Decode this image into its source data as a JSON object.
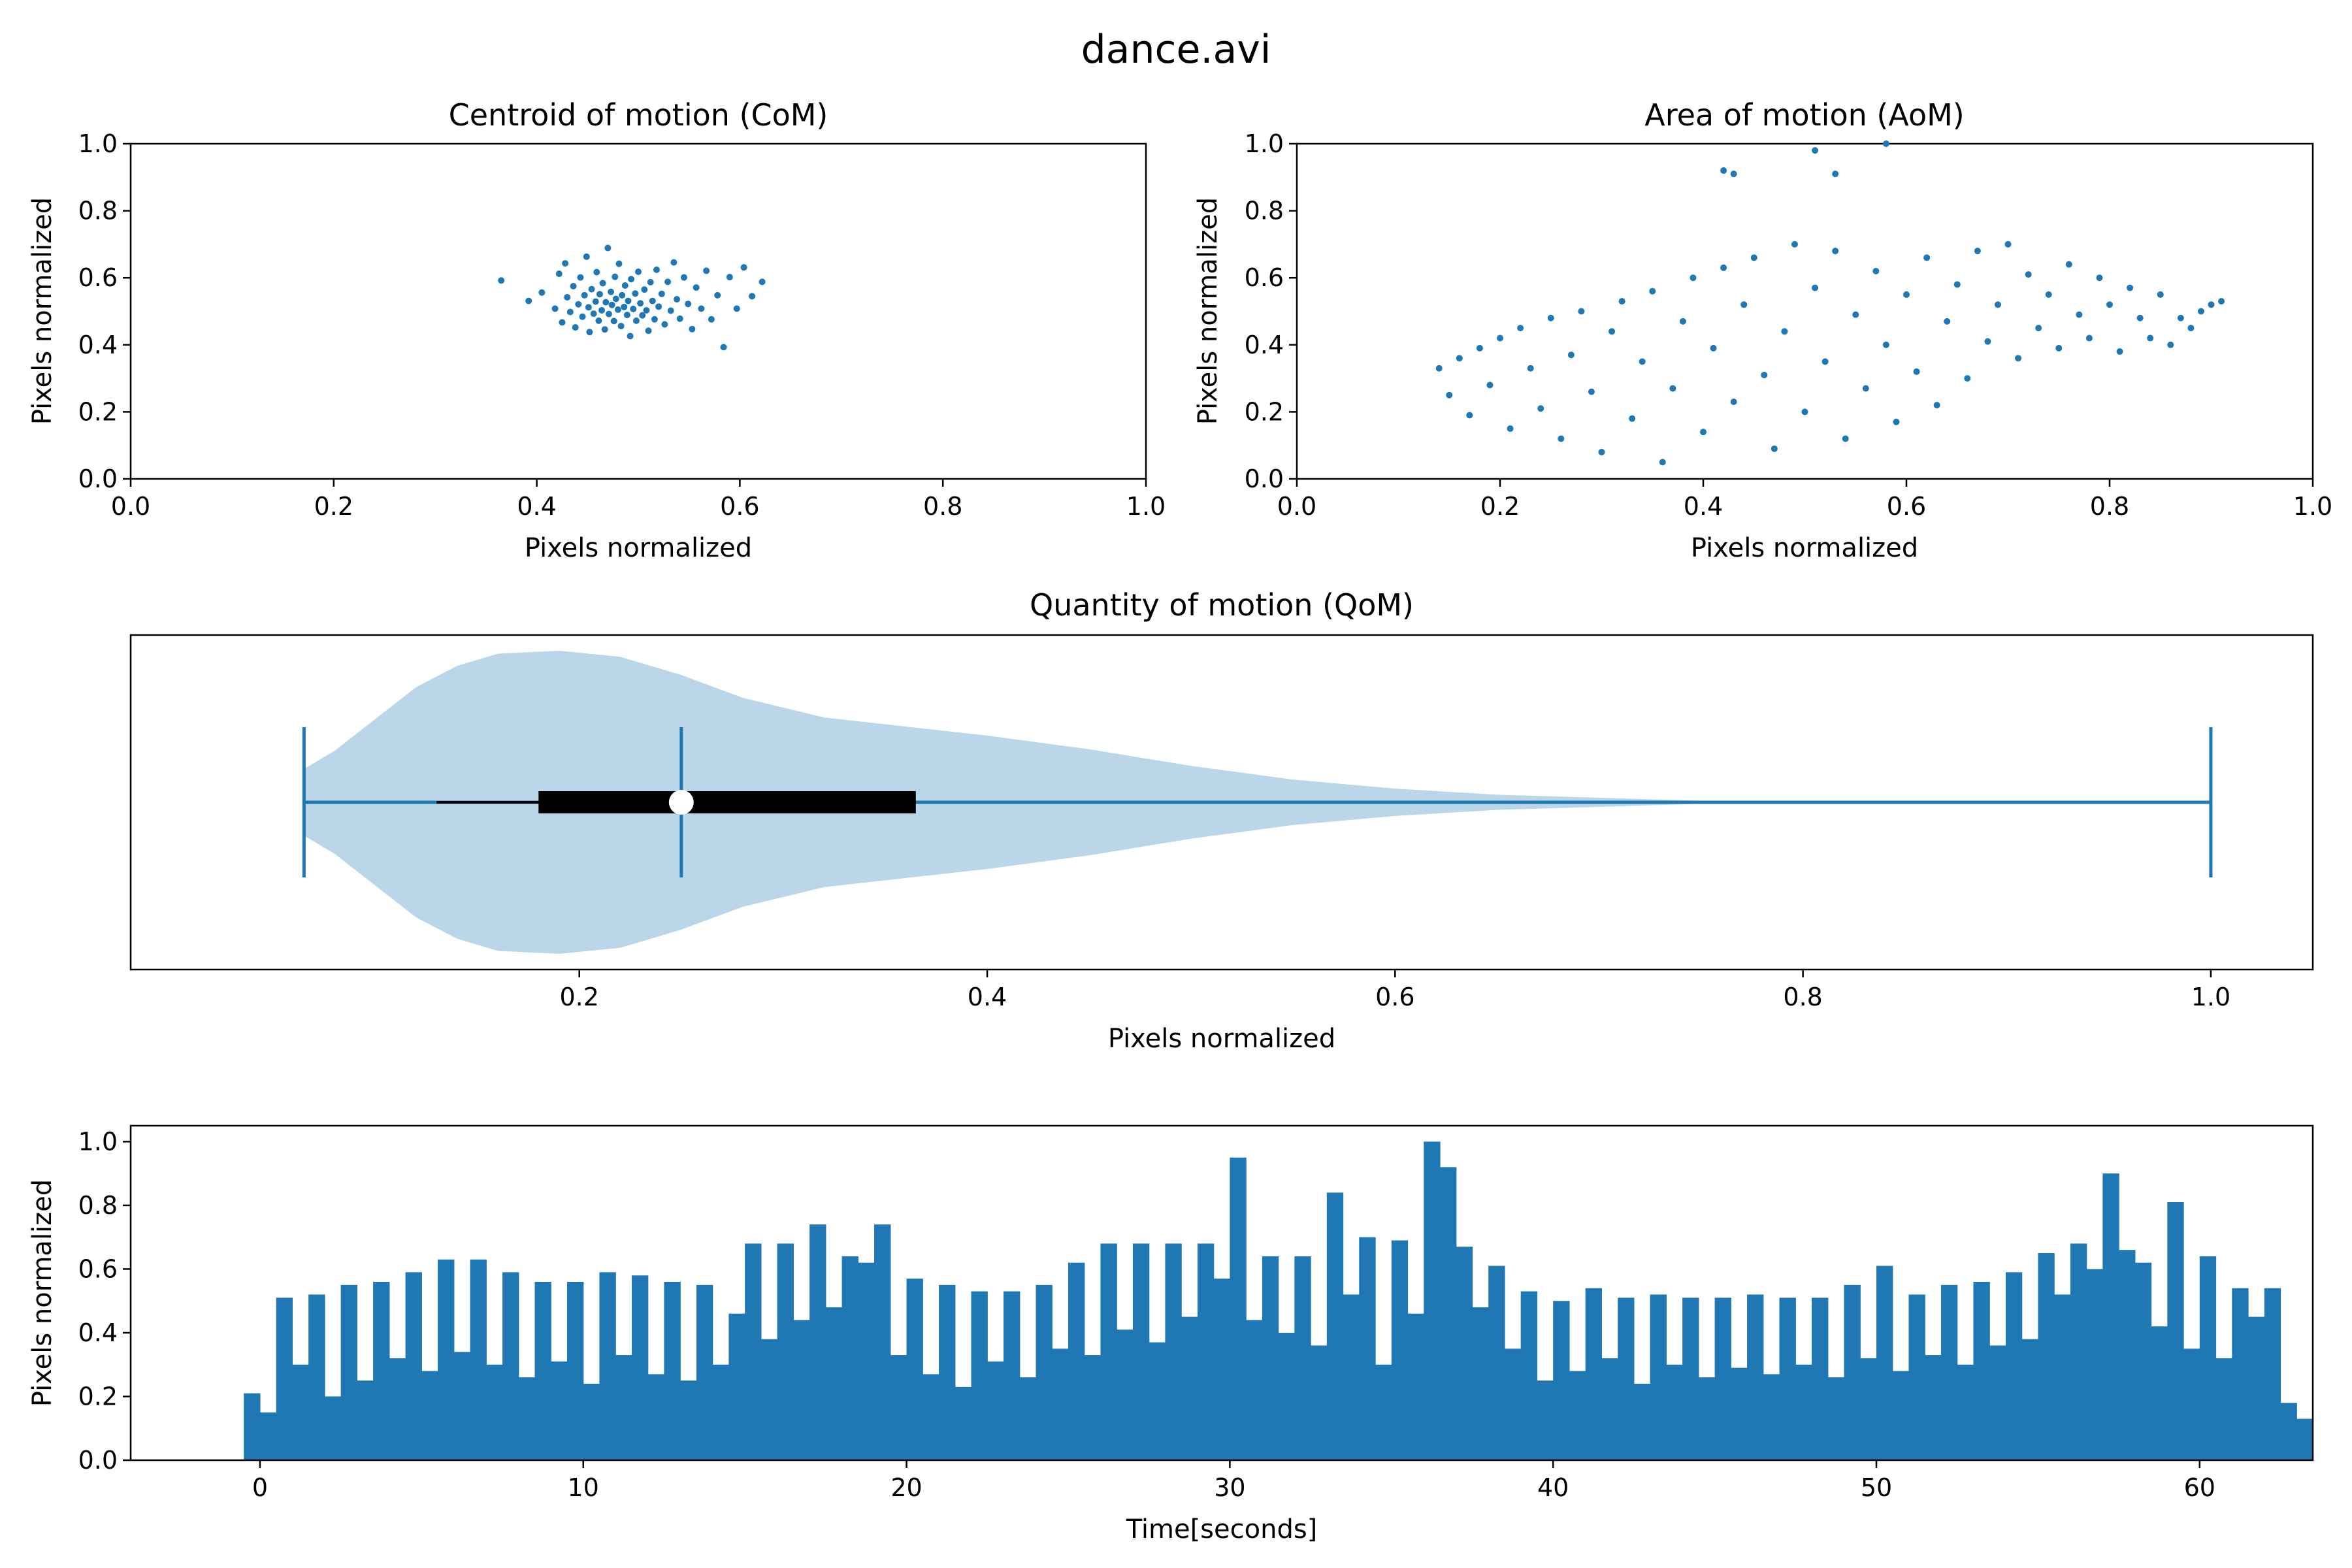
{
  "figure_title": "dance.avi",
  "colors": {
    "series": "#1f77b4",
    "violin_fill": "#1f77b4",
    "box": "#000000",
    "median": "#ffffff"
  },
  "chart_data": [
    {
      "id": "com",
      "type": "scatter",
      "title": "Centroid of motion (CoM)",
      "xlabel": "Pixels normalized",
      "ylabel": "Pixels normalized",
      "xlim": [
        0,
        1
      ],
      "ylim": [
        0,
        1
      ],
      "xticks": [
        "0.0",
        "0.2",
        "0.4",
        "0.6",
        "0.8",
        "1.0"
      ],
      "yticks": [
        "0.0",
        "0.2",
        "0.4",
        "0.6",
        "0.8",
        "1.0"
      ],
      "grid": false,
      "points": [
        [
          0.365,
          0.592
        ],
        [
          0.392,
          0.531
        ],
        [
          0.405,
          0.556
        ],
        [
          0.418,
          0.508
        ],
        [
          0.422,
          0.612
        ],
        [
          0.425,
          0.467
        ],
        [
          0.428,
          0.643
        ],
        [
          0.43,
          0.542
        ],
        [
          0.433,
          0.498
        ],
        [
          0.436,
          0.575
        ],
        [
          0.438,
          0.452
        ],
        [
          0.441,
          0.521
        ],
        [
          0.443,
          0.601
        ],
        [
          0.445,
          0.484
        ],
        [
          0.447,
          0.548
        ],
        [
          0.449,
          0.663
        ],
        [
          0.451,
          0.512
        ],
        [
          0.452,
          0.438
        ],
        [
          0.454,
          0.566
        ],
        [
          0.456,
          0.493
        ],
        [
          0.458,
          0.529
        ],
        [
          0.459,
          0.617
        ],
        [
          0.461,
          0.472
        ],
        [
          0.462,
          0.551
        ],
        [
          0.464,
          0.503
        ],
        [
          0.465,
          0.584
        ],
        [
          0.467,
          0.446
        ],
        [
          0.468,
          0.527
        ],
        [
          0.47,
          0.689
        ],
        [
          0.471,
          0.492
        ],
        [
          0.473,
          0.558
        ],
        [
          0.474,
          0.519
        ],
        [
          0.476,
          0.471
        ],
        [
          0.477,
          0.603
        ],
        [
          0.478,
          0.537
        ],
        [
          0.48,
          0.505
        ],
        [
          0.481,
          0.642
        ],
        [
          0.483,
          0.456
        ],
        [
          0.484,
          0.548
        ],
        [
          0.486,
          0.513
        ],
        [
          0.487,
          0.577
        ],
        [
          0.489,
          0.489
        ],
        [
          0.49,
          0.531
        ],
        [
          0.492,
          0.426
        ],
        [
          0.493,
          0.596
        ],
        [
          0.495,
          0.507
        ],
        [
          0.497,
          0.553
        ],
        [
          0.498,
          0.472
        ],
        [
          0.5,
          0.618
        ],
        [
          0.502,
          0.524
        ],
        [
          0.504,
          0.488
        ],
        [
          0.506,
          0.565
        ],
        [
          0.508,
          0.503
        ],
        [
          0.51,
          0.442
        ],
        [
          0.512,
          0.587
        ],
        [
          0.514,
          0.531
        ],
        [
          0.516,
          0.476
        ],
        [
          0.518,
          0.624
        ],
        [
          0.52,
          0.514
        ],
        [
          0.523,
          0.552
        ],
        [
          0.526,
          0.461
        ],
        [
          0.529,
          0.588
        ],
        [
          0.532,
          0.502
        ],
        [
          0.535,
          0.646
        ],
        [
          0.538,
          0.536
        ],
        [
          0.541,
          0.478
        ],
        [
          0.545,
          0.601
        ],
        [
          0.549,
          0.522
        ],
        [
          0.553,
          0.447
        ],
        [
          0.557,
          0.571
        ],
        [
          0.562,
          0.508
        ],
        [
          0.567,
          0.621
        ],
        [
          0.572,
          0.476
        ],
        [
          0.578,
          0.548
        ],
        [
          0.584,
          0.393
        ],
        [
          0.59,
          0.602
        ],
        [
          0.597,
          0.508
        ],
        [
          0.604,
          0.631
        ],
        [
          0.612,
          0.545
        ],
        [
          0.622,
          0.588
        ]
      ]
    },
    {
      "id": "aom",
      "type": "scatter",
      "title": "Area of motion (AoM)",
      "xlabel": "Pixels normalized",
      "ylabel": "Pixels normalized",
      "xlim": [
        0,
        1
      ],
      "ylim": [
        0,
        1
      ],
      "xticks": [
        "0.0",
        "0.2",
        "0.4",
        "0.6",
        "0.8",
        "1.0"
      ],
      "yticks": [
        "0.0",
        "0.2",
        "0.4",
        "0.6",
        "0.8",
        "1.0"
      ],
      "grid": false,
      "points": [
        [
          0.14,
          0.33
        ],
        [
          0.15,
          0.25
        ],
        [
          0.16,
          0.36
        ],
        [
          0.17,
          0.19
        ],
        [
          0.18,
          0.39
        ],
        [
          0.19,
          0.28
        ],
        [
          0.2,
          0.42
        ],
        [
          0.21,
          0.15
        ],
        [
          0.22,
          0.45
        ],
        [
          0.23,
          0.33
        ],
        [
          0.24,
          0.21
        ],
        [
          0.25,
          0.48
        ],
        [
          0.26,
          0.12
        ],
        [
          0.27,
          0.37
        ],
        [
          0.28,
          0.5
        ],
        [
          0.29,
          0.26
        ],
        [
          0.3,
          0.08
        ],
        [
          0.31,
          0.44
        ],
        [
          0.32,
          0.53
        ],
        [
          0.33,
          0.18
        ],
        [
          0.34,
          0.35
        ],
        [
          0.35,
          0.56
        ],
        [
          0.36,
          0.05
        ],
        [
          0.37,
          0.27
        ],
        [
          0.38,
          0.47
        ],
        [
          0.39,
          0.6
        ],
        [
          0.4,
          0.14
        ],
        [
          0.41,
          0.39
        ],
        [
          0.42,
          0.63
        ],
        [
          0.43,
          0.23
        ],
        [
          0.44,
          0.52
        ],
        [
          0.45,
          0.66
        ],
        [
          0.46,
          0.31
        ],
        [
          0.47,
          0.09
        ],
        [
          0.48,
          0.44
        ],
        [
          0.49,
          0.7
        ],
        [
          0.5,
          0.2
        ],
        [
          0.51,
          0.57
        ],
        [
          0.52,
          0.35
        ],
        [
          0.53,
          0.68
        ],
        [
          0.54,
          0.12
        ],
        [
          0.55,
          0.49
        ],
        [
          0.56,
          0.27
        ],
        [
          0.57,
          0.62
        ],
        [
          0.58,
          0.4
        ],
        [
          0.59,
          0.17
        ],
        [
          0.6,
          0.55
        ],
        [
          0.61,
          0.32
        ],
        [
          0.62,
          0.66
        ],
        [
          0.63,
          0.22
        ],
        [
          0.64,
          0.47
        ],
        [
          0.65,
          0.58
        ],
        [
          0.66,
          0.3
        ],
        [
          0.67,
          0.68
        ],
        [
          0.68,
          0.41
        ],
        [
          0.69,
          0.52
        ],
        [
          0.7,
          0.7
        ],
        [
          0.71,
          0.36
        ],
        [
          0.72,
          0.61
        ],
        [
          0.73,
          0.45
        ],
        [
          0.74,
          0.55
        ],
        [
          0.75,
          0.39
        ],
        [
          0.76,
          0.64
        ],
        [
          0.77,
          0.49
        ],
        [
          0.78,
          0.42
        ],
        [
          0.79,
          0.6
        ],
        [
          0.8,
          0.52
        ],
        [
          0.81,
          0.38
        ],
        [
          0.82,
          0.57
        ],
        [
          0.83,
          0.48
        ],
        [
          0.84,
          0.42
        ],
        [
          0.85,
          0.55
        ],
        [
          0.86,
          0.4
        ],
        [
          0.87,
          0.48
        ],
        [
          0.88,
          0.45
        ],
        [
          0.89,
          0.5
        ],
        [
          0.9,
          0.52
        ],
        [
          0.91,
          0.53
        ],
        [
          0.42,
          0.92
        ],
        [
          0.43,
          0.91
        ],
        [
          0.51,
          0.98
        ],
        [
          0.53,
          0.91
        ],
        [
          0.58,
          1.0
        ]
      ]
    },
    {
      "id": "qom_violin",
      "type": "violin",
      "title": "Quantity of motion (QoM)",
      "xlabel": "Pixels normalized",
      "xlim": [
        -0.02,
        1.05
      ],
      "xticks": [
        "0.2",
        "0.4",
        "0.6",
        "0.8",
        "1.0"
      ],
      "min": 0.065,
      "max": 1.0,
      "median": 0.25,
      "q1": 0.18,
      "q3": 0.365,
      "whisker_low": 0.13,
      "whisker_high": 0.365,
      "density": [
        [
          0.065,
          0.22
        ],
        [
          0.08,
          0.34
        ],
        [
          0.1,
          0.55
        ],
        [
          0.12,
          0.76
        ],
        [
          0.14,
          0.9
        ],
        [
          0.16,
          0.98
        ],
        [
          0.19,
          1.0
        ],
        [
          0.22,
          0.96
        ],
        [
          0.25,
          0.84
        ],
        [
          0.28,
          0.69
        ],
        [
          0.32,
          0.56
        ],
        [
          0.36,
          0.5
        ],
        [
          0.4,
          0.44
        ],
        [
          0.45,
          0.35
        ],
        [
          0.5,
          0.24
        ],
        [
          0.55,
          0.15
        ],
        [
          0.6,
          0.09
        ],
        [
          0.65,
          0.05
        ],
        [
          0.7,
          0.03
        ],
        [
          0.75,
          0.01
        ],
        [
          0.8,
          0.005
        ],
        [
          0.9,
          0.002
        ],
        [
          1.0,
          0.0
        ]
      ]
    },
    {
      "id": "qom_time",
      "type": "bar",
      "xlabel": "Time[seconds]",
      "ylabel": "Pixels normalized",
      "xlim": [
        -4,
        63.5
      ],
      "ylim": [
        0,
        1.05
      ],
      "xticks": [
        "0",
        "10",
        "20",
        "30",
        "40",
        "50",
        "60"
      ],
      "yticks": [
        "0.0",
        "0.2",
        "0.4",
        "0.6",
        "0.8",
        "1.0"
      ],
      "grid": false,
      "x": [
        -0.5,
        0,
        0.5,
        1,
        1.5,
        2,
        2.5,
        3,
        3.5,
        4,
        4.5,
        5,
        5.5,
        6,
        6.5,
        7,
        7.5,
        8,
        8.5,
        9,
        9.5,
        10,
        10.5,
        11,
        11.5,
        12,
        12.5,
        13,
        13.5,
        14,
        14.5,
        15,
        15.5,
        16,
        16.5,
        17,
        17.5,
        18,
        18.5,
        19,
        19.5,
        20,
        20.5,
        21,
        21.5,
        22,
        22.5,
        23,
        23.5,
        24,
        24.5,
        25,
        25.5,
        26,
        26.5,
        27,
        27.5,
        28,
        28.5,
        29,
        29.5,
        30,
        30.5,
        31,
        31.5,
        32,
        32.5,
        33,
        33.5,
        34,
        34.5,
        35,
        35.5,
        36,
        36.5,
        37,
        37.5,
        38,
        38.5,
        39,
        39.5,
        40,
        40.5,
        41,
        41.5,
        42,
        42.5,
        43,
        43.5,
        44,
        44.5,
        45,
        45.5,
        46,
        46.5,
        47,
        47.5,
        48,
        48.5,
        49,
        49.5,
        50,
        50.5,
        51,
        51.5,
        52,
        52.5,
        53,
        53.5,
        54,
        54.5,
        55,
        55.5,
        56,
        56.5,
        57,
        57.5,
        58,
        58.5,
        59,
        59.5,
        60,
        60.5,
        61,
        61.5,
        62,
        62.5,
        63
      ],
      "values": [
        0.21,
        0.15,
        0.51,
        0.3,
        0.52,
        0.2,
        0.55,
        0.25,
        0.56,
        0.32,
        0.59,
        0.28,
        0.63,
        0.34,
        0.63,
        0.3,
        0.59,
        0.26,
        0.56,
        0.31,
        0.56,
        0.24,
        0.59,
        0.33,
        0.58,
        0.27,
        0.56,
        0.25,
        0.55,
        0.3,
        0.46,
        0.68,
        0.38,
        0.68,
        0.44,
        0.74,
        0.48,
        0.64,
        0.62,
        0.74,
        0.33,
        0.57,
        0.27,
        0.55,
        0.23,
        0.53,
        0.31,
        0.53,
        0.26,
        0.55,
        0.35,
        0.62,
        0.33,
        0.68,
        0.41,
        0.68,
        0.37,
        0.68,
        0.45,
        0.68,
        0.57,
        0.95,
        0.44,
        0.64,
        0.4,
        0.64,
        0.36,
        0.84,
        0.52,
        0.7,
        0.3,
        0.69,
        0.46,
        1.0,
        0.92,
        0.67,
        0.48,
        0.61,
        0.35,
        0.53,
        0.25,
        0.5,
        0.28,
        0.54,
        0.32,
        0.51,
        0.24,
        0.52,
        0.3,
        0.51,
        0.26,
        0.51,
        0.29,
        0.52,
        0.27,
        0.51,
        0.3,
        0.51,
        0.26,
        0.55,
        0.32,
        0.61,
        0.28,
        0.52,
        0.33,
        0.55,
        0.3,
        0.56,
        0.36,
        0.59,
        0.38,
        0.65,
        0.52,
        0.68,
        0.6,
        0.9,
        0.66,
        0.62,
        0.42,
        0.81,
        0.35,
        0.64,
        0.32,
        0.54,
        0.45,
        0.54,
        0.18,
        0.13
      ]
    }
  ]
}
